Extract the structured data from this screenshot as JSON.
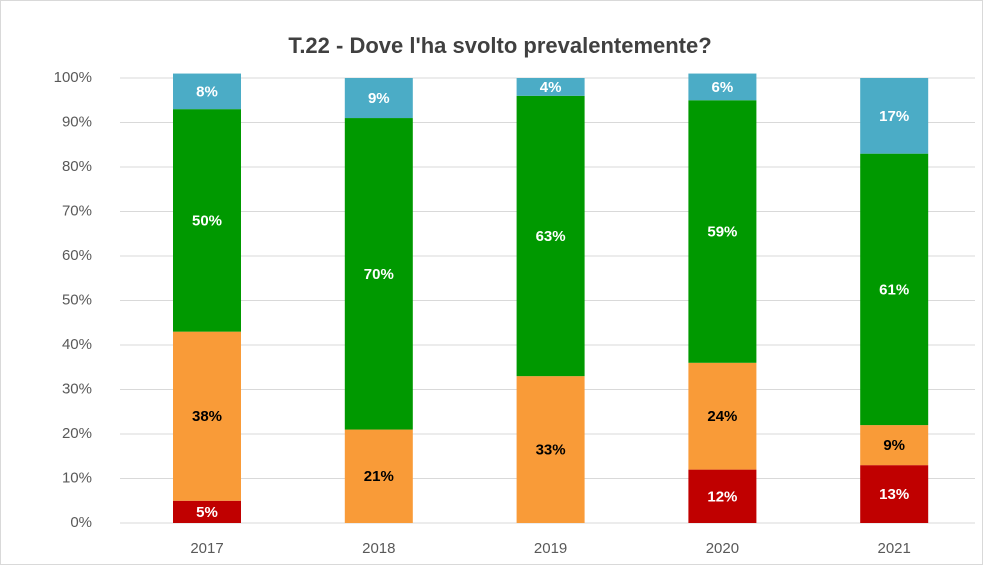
{
  "chart_data": {
    "type": "stacked_bar",
    "title": "T.22 - Dove l'ha svolto prevalentemente?",
    "categories": [
      "2017",
      "2018",
      "2019",
      "2020",
      "2021"
    ],
    "series": [
      {
        "color": "#c00000",
        "label_color": "#ffffff",
        "values": [
          5,
          null,
          null,
          12,
          13
        ],
        "value_labels": [
          "5%",
          null,
          null,
          "12%",
          "13%"
        ]
      },
      {
        "color": "#f99b38",
        "label_color": "#000000",
        "values": [
          38,
          21,
          33,
          24,
          9
        ],
        "value_labels": [
          "38%",
          "21%",
          "33%",
          "24%",
          "9%"
        ]
      },
      {
        "color": "#009900",
        "label_color": "#ffffff",
        "values": [
          50,
          70,
          63,
          59,
          61
        ],
        "value_labels": [
          "50%",
          "70%",
          "63%",
          "59%",
          "61%"
        ]
      },
      {
        "color": "#4bacc6",
        "label_color": "#ffffff",
        "values": [
          8,
          9,
          4,
          6,
          17
        ],
        "value_labels": [
          "8%",
          "9%",
          "4%",
          "6%",
          "17%"
        ]
      }
    ],
    "ylim": [
      0,
      100
    ],
    "yticks": [
      {
        "value": 0,
        "label": "0%"
      },
      {
        "value": 10,
        "label": "10%"
      },
      {
        "value": 20,
        "label": "20%"
      },
      {
        "value": 30,
        "label": "30%"
      },
      {
        "value": 40,
        "label": "40%"
      },
      {
        "value": 50,
        "label": "50%"
      },
      {
        "value": 60,
        "label": "60%"
      },
      {
        "value": 70,
        "label": "70%"
      },
      {
        "value": 80,
        "label": "80%"
      },
      {
        "value": 90,
        "label": "90%"
      },
      {
        "value": 100,
        "label": "100%"
      }
    ],
    "grid": true
  }
}
